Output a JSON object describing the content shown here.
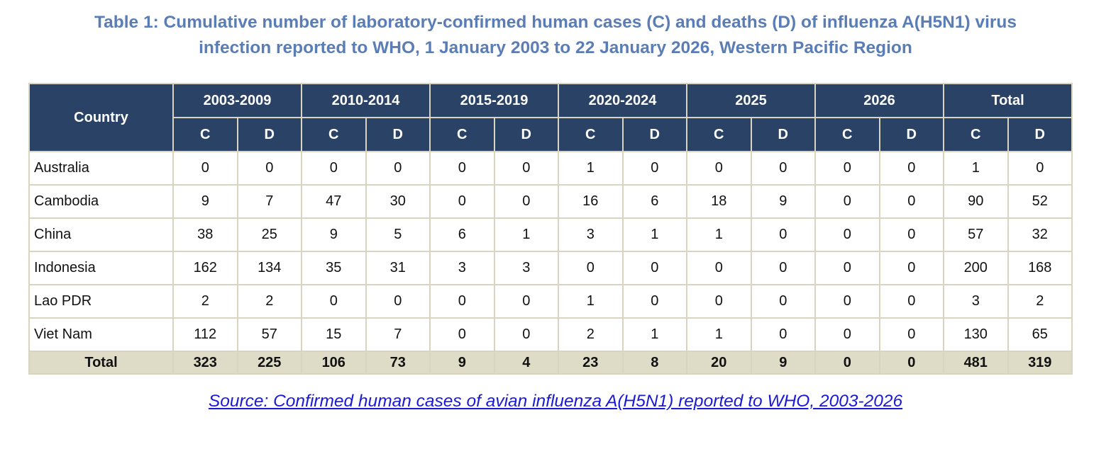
{
  "title": {
    "line1": "Table 1: Cumulative number of laboratory-confirmed human cases (C) and deaths (D) of influenza A(H5N1) virus",
    "line2": "infection reported to WHO, 1 January 2003 to 22 January 2026, Western Pacific Region"
  },
  "table": {
    "country_header": "Country",
    "periods": [
      "2003-2009",
      "2010-2014",
      "2015-2019",
      "2020-2024",
      "2025",
      "2026",
      "Total"
    ],
    "c_label": "C",
    "d_label": "D",
    "rows": [
      {
        "country": "Australia",
        "values": [
          "0",
          "0",
          "0",
          "0",
          "0",
          "0",
          "1",
          "0",
          "0",
          "0",
          "0",
          "0",
          "1",
          "0"
        ]
      },
      {
        "country": "Cambodia",
        "values": [
          "9",
          "7",
          "47",
          "30",
          "0",
          "0",
          "16",
          "6",
          "18",
          "9",
          "0",
          "0",
          "90",
          "52"
        ]
      },
      {
        "country": "China",
        "values": [
          "38",
          "25",
          "9",
          "5",
          "6",
          "1",
          "3",
          "1",
          "1",
          "0",
          "0",
          "0",
          "57",
          "32"
        ]
      },
      {
        "country": "Indonesia",
        "values": [
          "162",
          "134",
          "35",
          "31",
          "3",
          "3",
          "0",
          "0",
          "0",
          "0",
          "0",
          "0",
          "200",
          "168"
        ]
      },
      {
        "country": "Lao PDR",
        "values": [
          "2",
          "2",
          "0",
          "0",
          "0",
          "0",
          "1",
          "0",
          "0",
          "0",
          "0",
          "0",
          "3",
          "2"
        ]
      },
      {
        "country": "Viet Nam",
        "values": [
          "112",
          "57",
          "15",
          "7",
          "0",
          "0",
          "2",
          "1",
          "1",
          "0",
          "0",
          "0",
          "130",
          "65"
        ]
      }
    ],
    "total_row": {
      "label": "Total",
      "values": [
        "323",
        "225",
        "106",
        "73",
        "9",
        "4",
        "23",
        "8",
        "20",
        "9",
        "0",
        "0",
        "481",
        "319"
      ]
    }
  },
  "source": {
    "text": "Source: Confirmed human cases of avian influenza A(H5N1) reported to WHO, 2003-2026"
  },
  "colors": {
    "title": "#5b7db5",
    "header_bg": "#2a4265",
    "total_bg": "#dedbc7",
    "border": "#d8d4bf",
    "link": "#1a1ad6"
  }
}
